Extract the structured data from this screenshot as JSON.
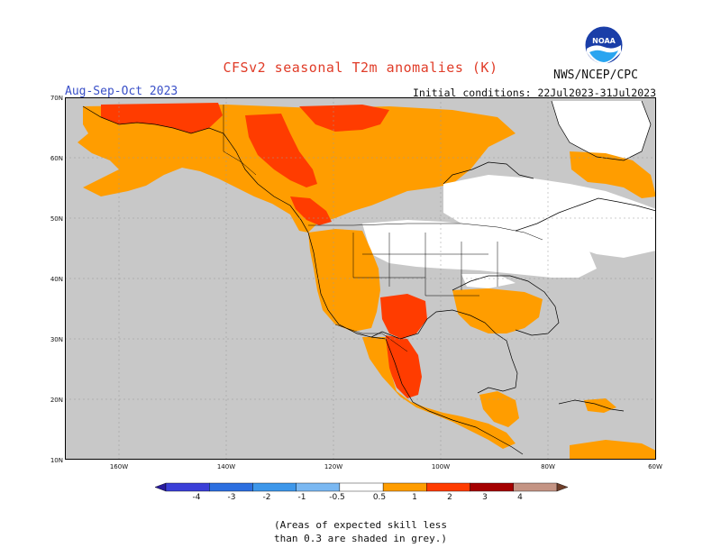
{
  "header": {
    "title": "CFSv2 seasonal T2m anomalies (K)",
    "season": "Aug-Sep-Oct 2023",
    "initial_conditions": "Initial conditions: 22Jul2023-31Jul2023",
    "agency": "NWS/NCEP/CPC",
    "logo_text": "NOAA"
  },
  "map": {
    "lat_labels": [
      "70N",
      "60N",
      "50N",
      "40N",
      "30N",
      "20N",
      "10N"
    ],
    "lon_labels": [
      "160W",
      "140W",
      "120W",
      "100W",
      "80W",
      "60W"
    ],
    "lat_range": [
      10,
      70
    ],
    "lon_range": [
      -170,
      -60
    ],
    "shading_colors": {
      "grey_low_skill": "#c8c8c8",
      "neutral": "#ffffff",
      "anom_0_5_to_1": "#ff9d00",
      "anom_1_to_2": "#ff3c00",
      "anom_2_to_3": "#a50000",
      "ocean_border": "#000000"
    }
  },
  "colorbar": {
    "tick_labels": [
      "-4",
      "-3",
      "-2",
      "-1",
      "-0.5",
      "0.5",
      "1",
      "2",
      "3",
      "4"
    ],
    "colors": [
      "#2a1c9e",
      "#3b3fd8",
      "#2c6fe0",
      "#3d97ea",
      "#7ab8f2",
      "#ffffff",
      "#ff9d00",
      "#ff3c00",
      "#a50000",
      "#c49484",
      "#6e3e2a"
    ]
  },
  "footnote": {
    "line1": "(Areas of expected skill less",
    "line2": "than 0.3 are shaded in grey.)"
  }
}
